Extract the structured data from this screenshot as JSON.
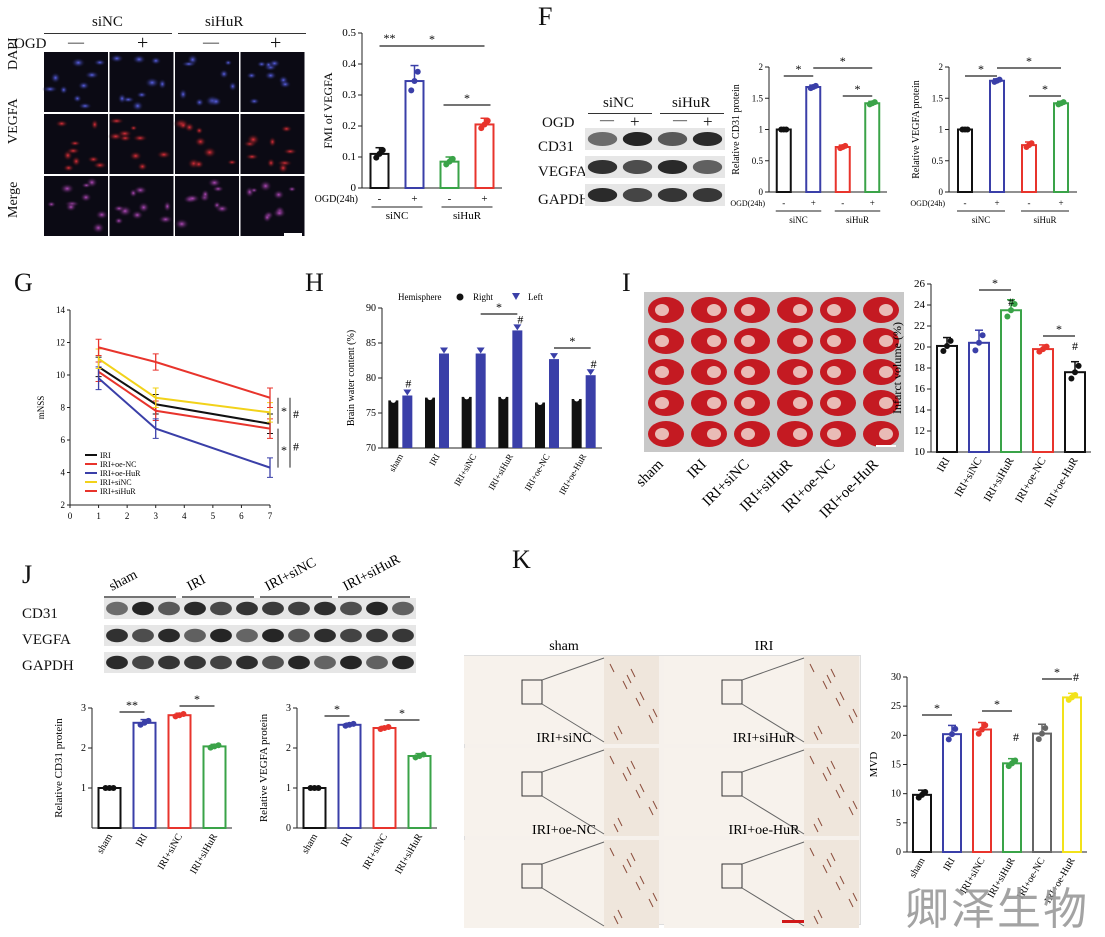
{
  "watermark": "卿泽生物",
  "panels": {
    "E": {
      "conditions": [
        "siNC",
        "siHuR"
      ],
      "ogd_label": "OGD",
      "ogd_marks": [
        "—",
        "+",
        "—",
        "+"
      ],
      "stain_rows": [
        "DAPI",
        "VEGFA",
        "Merge"
      ]
    },
    "F": {
      "letter": "F",
      "conditions": [
        "siNC",
        "siHuR"
      ],
      "ogd_label": "OGD",
      "ogd_marks": [
        "—",
        "+",
        "—",
        "+"
      ],
      "blot_rows": [
        "CD31",
        "VEGFA",
        "GAPDH"
      ]
    },
    "G": {
      "letter": "G"
    },
    "H": {
      "letter": "H"
    },
    "I": {
      "letter": "I",
      "groups": [
        "sham",
        "IRI",
        "IRI+siNC",
        "IRI+siHuR",
        "IRI+oe-NC",
        "IRI+oe-HuR"
      ]
    },
    "J": {
      "letter": "J",
      "groups": [
        "sham",
        "IRI",
        "IRI+siNC",
        "IRI+siHuR"
      ],
      "blot_rows": [
        "CD31",
        "VEGFA",
        "GAPDH"
      ]
    },
    "K": {
      "letter": "K",
      "images": [
        "sham",
        "IRI",
        "IRI+siNC",
        "IRI+siHuR",
        "IRI+oe-NC",
        "IRI+oe-HuR"
      ]
    }
  },
  "chart_data": [
    {
      "id": "E_fmi",
      "type": "bar",
      "ylabel": "FMI of VEGFA",
      "ylim": [
        0,
        0.5
      ],
      "yticks": [
        0.0,
        0.1,
        0.2,
        0.3,
        0.4,
        0.5
      ],
      "categories": [
        "-",
        "+",
        "-",
        "+"
      ],
      "xprefix": "OGD(24h)",
      "groups": [
        "siNC",
        "siHuR"
      ],
      "values": [
        0.11,
        0.345,
        0.085,
        0.205
      ],
      "errors": [
        0.02,
        0.05,
        0.015,
        0.02
      ],
      "colors": [
        "#111111",
        "#3a3fa8",
        "#3aa348",
        "#e8342c"
      ],
      "annotations": [
        "**",
        "*",
        "*"
      ]
    },
    {
      "id": "F_cd31",
      "type": "bar",
      "ylabel": "Relative CD31 protein",
      "ylim": [
        0,
        2.0
      ],
      "yticks": [
        0.0,
        0.5,
        1.0,
        1.5,
        2.0
      ],
      "categories": [
        "-",
        "+",
        "-",
        "+"
      ],
      "xprefix": "OGD(24h)",
      "groups": [
        "siNC",
        "siHuR"
      ],
      "values": [
        1.0,
        1.68,
        0.72,
        1.42
      ],
      "errors": [
        0.0,
        0.03,
        0.03,
        0.03
      ],
      "colors": [
        "#111111",
        "#3a3fa8",
        "#e8342c",
        "#3aa348"
      ],
      "annotations": [
        "*",
        "*",
        "*"
      ]
    },
    {
      "id": "F_vegfa",
      "type": "bar",
      "ylabel": "Relative VEGFA protein",
      "ylim": [
        0,
        2.0
      ],
      "yticks": [
        0.0,
        0.5,
        1.0,
        1.5,
        2.0
      ],
      "categories": [
        "-",
        "+",
        "-",
        "+"
      ],
      "xprefix": "OGD(24h)",
      "groups": [
        "siNC",
        "siHuR"
      ],
      "values": [
        1.0,
        1.78,
        0.75,
        1.42
      ],
      "errors": [
        0.0,
        0.03,
        0.05,
        0.03
      ],
      "colors": [
        "#111111",
        "#3a3fa8",
        "#e8342c",
        "#3aa348"
      ],
      "annotations": [
        "*",
        "*",
        "*"
      ]
    },
    {
      "id": "G_mnss",
      "type": "line",
      "ylabel": "mNSS",
      "xlim": [
        0,
        7
      ],
      "ylim": [
        2,
        14
      ],
      "xticks": [
        0,
        1,
        2,
        3,
        4,
        5,
        6,
        7
      ],
      "yticks": [
        2,
        4,
        6,
        8,
        10,
        12,
        14
      ],
      "x": [
        1,
        3,
        7
      ],
      "series": [
        {
          "name": "IRI",
          "color": "#111111",
          "values": [
            10.5,
            8.2,
            7.0
          ],
          "errors": [
            0.6,
            0.6,
            0.6
          ]
        },
        {
          "name": "IRI+oe-NC",
          "color": "#e8342c",
          "values": [
            10.2,
            7.8,
            6.7
          ],
          "errors": [
            0.6,
            0.6,
            0.6
          ]
        },
        {
          "name": "IRI+oe-HuR",
          "color": "#3a3fa8",
          "values": [
            9.8,
            6.7,
            4.3
          ],
          "errors": [
            0.7,
            0.6,
            0.6
          ]
        },
        {
          "name": "IRI+siNC",
          "color": "#f2d21a",
          "values": [
            11.0,
            8.6,
            7.7
          ],
          "errors": [
            0.6,
            0.6,
            0.6
          ]
        },
        {
          "name": "IRI+siHuR",
          "color": "#e8342c",
          "values": [
            11.7,
            10.8,
            8.6
          ],
          "errors": [
            0.5,
            0.5,
            0.6
          ]
        }
      ],
      "annotations": [
        "*",
        "#",
        "*",
        "#"
      ]
    },
    {
      "id": "H_water",
      "type": "bar",
      "ylabel": "Brain water content (%)",
      "ylim": [
        70,
        90
      ],
      "yticks": [
        70,
        75,
        80,
        85,
        90
      ],
      "legend_title": "Hemisphere",
      "categories": [
        "sham",
        "IRI",
        "IRI+siNC",
        "IRI+siHuR",
        "IRI+oe-NC",
        "IRI+oe-HuR"
      ],
      "series": [
        {
          "name": "Right",
          "color": "#111111",
          "values": [
            76.8,
            77.2,
            77.3,
            77.3,
            76.5,
            77.0
          ]
        },
        {
          "name": "Left",
          "color": "#3a3fa8",
          "values": [
            77.5,
            83.5,
            83.5,
            86.8,
            82.7,
            80.4
          ]
        }
      ],
      "annotations": [
        "#",
        "*",
        "#",
        "*",
        "#"
      ]
    },
    {
      "id": "I_infarct",
      "type": "bar",
      "ylabel": "Infarct volume (%)",
      "ylim": [
        10,
        26
      ],
      "yticks": [
        10,
        12,
        14,
        16,
        18,
        20,
        22,
        24,
        26
      ],
      "categories": [
        "IRI",
        "IRI+siNC",
        "IRI+siHuR",
        "IRI+oe-NC",
        "IRI+oe-HuR"
      ],
      "values": [
        20.1,
        20.4,
        23.5,
        19.8,
        17.6
      ],
      "errors": [
        0.8,
        1.2,
        1.0,
        0.4,
        1.0
      ],
      "colors": [
        "#111111",
        "#3a3fa8",
        "#3aa348",
        "#e8342c",
        "#111111"
      ],
      "annotations": [
        "*",
        "#",
        "*",
        "#"
      ]
    },
    {
      "id": "J_cd31",
      "type": "bar",
      "ylabel": "Relative CD31 protein",
      "ylim": [
        0,
        3
      ],
      "yticks": [
        1,
        2,
        3
      ],
      "categories": [
        "sham",
        "IRI",
        "IRI+siNC",
        "IRI+siHuR"
      ],
      "values": [
        1.0,
        2.63,
        2.82,
        2.04
      ],
      "errors": [
        0.0,
        0.08,
        0.05,
        0.05
      ],
      "colors": [
        "#111111",
        "#3a3fa8",
        "#e8342c",
        "#3aa348"
      ],
      "annotations": [
        "**",
        "*"
      ]
    },
    {
      "id": "J_vegfa",
      "type": "bar",
      "ylabel": "Relative VEGFA protein",
      "ylim": [
        0,
        3
      ],
      "yticks": [
        0,
        1,
        2,
        3
      ],
      "categories": [
        "sham",
        "IRI",
        "IRI+siNC",
        "IRI+siHuR"
      ],
      "values": [
        1.0,
        2.58,
        2.5,
        1.8
      ],
      "errors": [
        0.0,
        0.04,
        0.04,
        0.06
      ],
      "colors": [
        "#111111",
        "#3a3fa8",
        "#e8342c",
        "#3aa348"
      ],
      "annotations": [
        "*",
        "*"
      ]
    },
    {
      "id": "K_mvd",
      "type": "bar",
      "ylabel": "MVD",
      "ylim": [
        0,
        30
      ],
      "yticks": [
        0,
        5,
        10,
        15,
        20,
        25,
        30
      ],
      "categories": [
        "sham",
        "IRI",
        "IRI+siNC",
        "IRI+siHuR",
        "IRI+oe-NC",
        "IRI+oe-HuR"
      ],
      "values": [
        9.8,
        20.2,
        21.0,
        15.2,
        20.3,
        26.5
      ],
      "errors": [
        0.8,
        1.5,
        1.2,
        0.8,
        1.6,
        0.7
      ],
      "colors": [
        "#111111",
        "#3a3fa8",
        "#e8342c",
        "#3aa348",
        "#666666",
        "#f2e21a"
      ],
      "annotations": [
        "*",
        "*",
        "#",
        "*",
        "#"
      ]
    }
  ]
}
